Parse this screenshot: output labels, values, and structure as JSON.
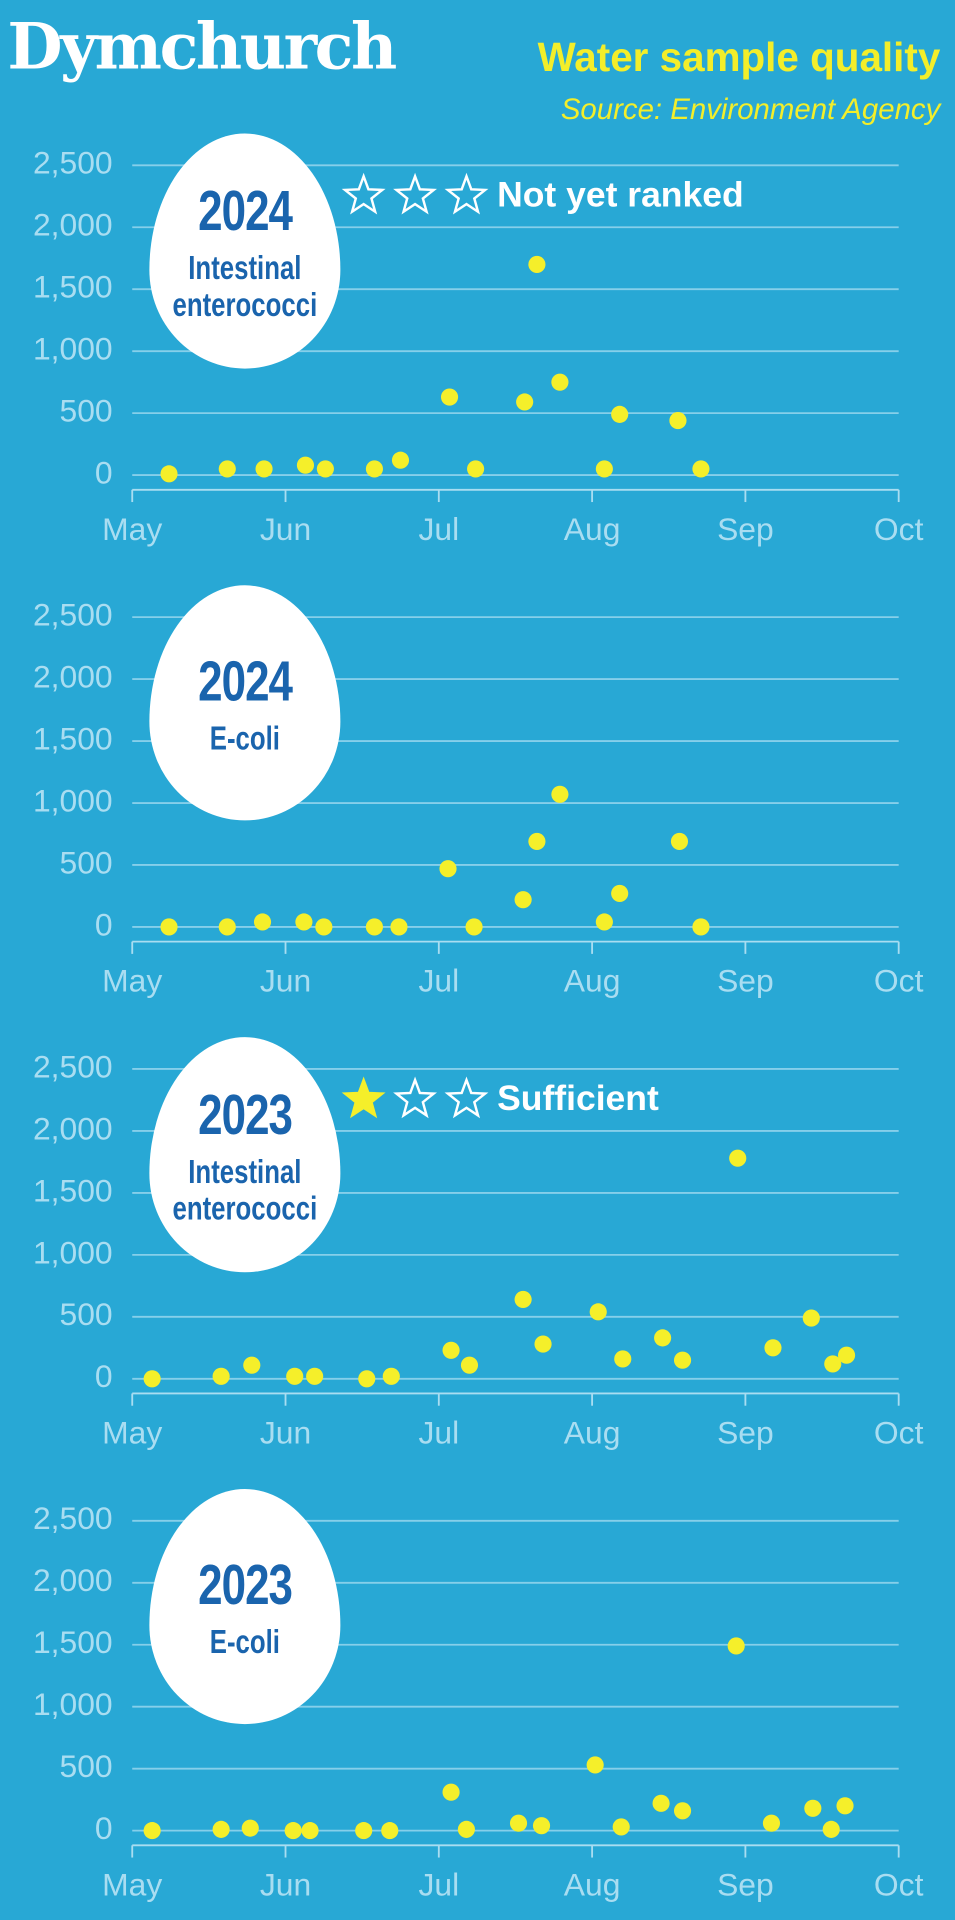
{
  "title": "Dymchurch",
  "subtitle": "Water sample quality",
  "source": "Source: Environment Agency",
  "chart_data": [
    {
      "type": "scatter",
      "year": "2024",
      "title": "Intestinal enterococci",
      "rating": {
        "label": "Not yet ranked",
        "stars": 0,
        "max_stars": 3
      },
      "x": [
        5.24,
        5.62,
        5.86,
        6.13,
        6.26,
        6.58,
        6.75,
        7.07,
        7.24,
        7.56,
        7.64,
        7.79,
        8.08,
        8.18,
        8.56,
        8.71
      ],
      "values": [
        10,
        50,
        50,
        80,
        50,
        50,
        120,
        630,
        50,
        590,
        1700,
        750,
        50,
        490,
        440,
        50
      ],
      "color": "#f5ef2a",
      "grid": true,
      "xlim": [
        5,
        10
      ],
      "xticks": [
        {
          "value": 5,
          "label": "May"
        },
        {
          "value": 6,
          "label": "Jun"
        },
        {
          "value": 7,
          "label": "Jul"
        },
        {
          "value": 8,
          "label": "Aug"
        },
        {
          "value": 9,
          "label": "Sep"
        },
        {
          "value": 10,
          "label": "Oct"
        }
      ],
      "ylim": [
        0,
        2500
      ],
      "yticks": [
        0,
        500,
        {
          "value": 1000,
          "label": "1,000"
        },
        {
          "value": 1500,
          "label": "1,500"
        },
        {
          "value": 2000,
          "label": "2,000"
        },
        {
          "value": 2500,
          "label": "2,500"
        }
      ]
    },
    {
      "type": "scatter",
      "year": "2024",
      "title": "E-coli",
      "x": [
        5.24,
        5.62,
        5.85,
        6.12,
        6.25,
        6.58,
        6.74,
        7.06,
        7.23,
        7.55,
        7.64,
        7.79,
        8.08,
        8.18,
        8.57,
        8.71
      ],
      "values": [
        0,
        0,
        40,
        40,
        0,
        0,
        0,
        470,
        0,
        220,
        690,
        1070,
        40,
        270,
        690,
        0
      ],
      "color": "#f5ef2a",
      "grid": true,
      "xlim": [
        5,
        10
      ],
      "xticks": [
        {
          "value": 5,
          "label": "May"
        },
        {
          "value": 6,
          "label": "Jun"
        },
        {
          "value": 7,
          "label": "Jul"
        },
        {
          "value": 8,
          "label": "Aug"
        },
        {
          "value": 9,
          "label": "Sep"
        },
        {
          "value": 10,
          "label": "Oct"
        }
      ],
      "ylim": [
        0,
        2500
      ],
      "yticks": [
        0,
        500,
        {
          "value": 1000,
          "label": "1,000"
        },
        {
          "value": 1500,
          "label": "1,500"
        },
        {
          "value": 2000,
          "label": "2,000"
        },
        {
          "value": 2500,
          "label": "2,500"
        }
      ]
    },
    {
      "type": "scatter",
      "year": "2023",
      "title": "Intestinal enterococci",
      "rating": {
        "label": "Sufficient",
        "stars": 1,
        "max_stars": 3
      },
      "x": [
        5.13,
        5.58,
        5.78,
        6.06,
        6.19,
        6.53,
        6.69,
        7.08,
        7.2,
        7.55,
        7.68,
        8.04,
        8.2,
        8.46,
        8.59,
        8.95,
        9.18,
        9.43,
        9.57,
        9.66
      ],
      "values": [
        0,
        20,
        110,
        20,
        20,
        0,
        20,
        230,
        110,
        640,
        280,
        540,
        160,
        330,
        150,
        1780,
        250,
        490,
        120,
        190
      ],
      "color": "#f5ef2a",
      "grid": true,
      "xlim": [
        5,
        10
      ],
      "xticks": [
        {
          "value": 5,
          "label": "May"
        },
        {
          "value": 6,
          "label": "Jun"
        },
        {
          "value": 7,
          "label": "Jul"
        },
        {
          "value": 8,
          "label": "Aug"
        },
        {
          "value": 9,
          "label": "Sep"
        },
        {
          "value": 10,
          "label": "Oct"
        }
      ],
      "ylim": [
        0,
        2500
      ],
      "yticks": [
        0,
        500,
        {
          "value": 1000,
          "label": "1,000"
        },
        {
          "value": 1500,
          "label": "1,500"
        },
        {
          "value": 2000,
          "label": "2,000"
        },
        {
          "value": 2500,
          "label": "2,500"
        }
      ]
    },
    {
      "type": "scatter",
      "year": "2023",
      "title": "E-coli",
      "x": [
        5.13,
        5.58,
        5.77,
        6.05,
        6.16,
        6.51,
        6.68,
        7.08,
        7.18,
        7.52,
        7.67,
        8.02,
        8.19,
        8.45,
        8.59,
        8.94,
        9.17,
        9.44,
        9.56,
        9.65
      ],
      "values": [
        0,
        10,
        20,
        0,
        0,
        0,
        0,
        310,
        10,
        60,
        40,
        530,
        30,
        220,
        160,
        1490,
        60,
        180,
        10,
        200
      ],
      "color": "#f5ef2a",
      "grid": true,
      "xlim": [
        5,
        10
      ],
      "xticks": [
        {
          "value": 5,
          "label": "May"
        },
        {
          "value": 6,
          "label": "Jun"
        },
        {
          "value": 7,
          "label": "Jul"
        },
        {
          "value": 8,
          "label": "Aug"
        },
        {
          "value": 9,
          "label": "Sep"
        },
        {
          "value": 10,
          "label": "Oct"
        }
      ],
      "ylim": [
        0,
        2500
      ],
      "yticks": [
        0,
        500,
        {
          "value": 1000,
          "label": "1,000"
        },
        {
          "value": 1500,
          "label": "1,500"
        },
        {
          "value": 2000,
          "label": "2,000"
        },
        {
          "value": 2500,
          "label": "2,500"
        }
      ]
    }
  ]
}
